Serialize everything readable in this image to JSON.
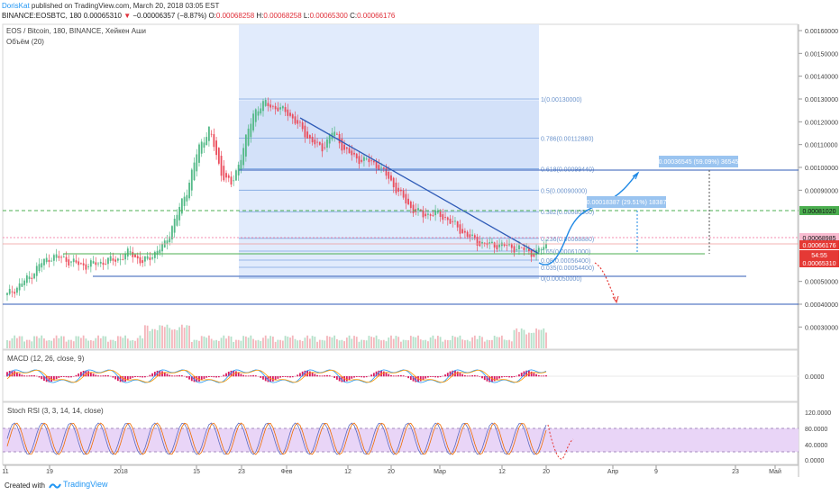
{
  "header": {
    "author": "DorisKat",
    "published": " published on TradingView.com, March 20, 2018 03:05 EST",
    "symbol": "BINANCE:EOSBTC, 180",
    "price": "0.00065310",
    "arrow": "▼",
    "change": "−0.00006357 (−8.87%)",
    "o_label": " O:",
    "o": "0.00068258",
    "h_label": " H:",
    "h": "0.00068258",
    "l_label": " L:",
    "l": "0.00065300",
    "c_label": " C:",
    "c": "0.00066176"
  },
  "legend": {
    "title": "EOS / Bitcoin, 180, BINANCE, Хейкен Аши",
    "volume": "Объём (20)"
  },
  "panes": {
    "macd_label": "MACD (12, 26, close, 9)",
    "rsi_label": "Stoch RSI (3, 3, 14, 14, close)"
  },
  "footer": {
    "created": "Created with",
    "brand": "TradingView"
  },
  "colors": {
    "up": "#53b987",
    "down": "#eb4d5c",
    "accent": "#2196f3",
    "fib_fill": "#dce8fb",
    "green_line": "#4caf50"
  },
  "chart_data": {
    "type": "candlestick",
    "y_axis": {
      "min": 0.0003,
      "max": 0.0017,
      "ticks": [
        "0.00160000",
        "0.00150000",
        "0.00140000",
        "0.00130000",
        "0.00120000",
        "0.00110000",
        "0.00100000",
        "0.00090000",
        "0.00081020",
        "0.00068985",
        "0.00066176",
        "0.00065310",
        "0.00050000",
        "0.00040000",
        "0.00030000"
      ]
    },
    "price_boxes": [
      {
        "label": "0.00081020",
        "kind": "green"
      },
      {
        "label": "0.00068985",
        "kind": "pink"
      },
      {
        "label": "0.00066176",
        "kind": "red"
      },
      {
        "label": "54:55",
        "kind": "red"
      },
      {
        "label": "0.00065310",
        "kind": "red"
      }
    ],
    "x_ticks": [
      "11",
      "19",
      "2018",
      "15",
      "23",
      "Фев",
      "12",
      "20",
      "Мар",
      "12",
      "20",
      "Апр",
      "9",
      "23",
      "Май"
    ],
    "fib_levels": [
      {
        "ratio": "1",
        "value": "0.00130000",
        "label": "1(0.00130000)"
      },
      {
        "ratio": "0.786",
        "value": "0.00112880",
        "label": "0.786(0.00112880)"
      },
      {
        "ratio": "0.618",
        "value": "0.00099440",
        "label": "0.618(0.00099440)"
      },
      {
        "ratio": "0.5",
        "value": "0.00090000",
        "label": "0.5(0.00090000)"
      },
      {
        "ratio": "0.382",
        "value": "0.00080560",
        "label": "0.382(0.00080560)"
      },
      {
        "ratio": "0.236",
        "value": "0.00068880",
        "label": "0.236(0.00068880)"
      },
      {
        "ratio": "0.65",
        "value": "0.00061000",
        "label": "0.65(0.00061000)"
      },
      {
        "ratio": "0.08",
        "value": "0.00056400",
        "label": "0.08(0.00056400)"
      },
      {
        "ratio": "0.035",
        "value": "0.00054400",
        "label": "0.035(0.00054400)"
      },
      {
        "ratio": "0",
        "value": "0.00050000",
        "label": "0(0.00050000)"
      }
    ],
    "annotations": [
      {
        "label": "0.00036545 (59.09%) 36545"
      },
      {
        "label": "0.00018387 (29.51%) 18387"
      }
    ],
    "series_close": [
      0.00044,
      0.00048,
      0.00052,
      0.00058,
      0.00061,
      0.0006,
      0.00058,
      0.00057,
      0.00058,
      0.00059,
      0.0006,
      0.00063,
      0.00058,
      0.00062,
      0.00066,
      0.00078,
      0.0009,
      0.00108,
      0.00117,
      0.00098,
      0.00092,
      0.00108,
      0.00125,
      0.00128,
      0.00126,
      0.00124,
      0.00118,
      0.00112,
      0.00108,
      0.00116,
      0.00108,
      0.00104,
      0.00103,
      0.00101,
      0.00095,
      0.00088,
      0.00082,
      0.00079,
      0.0008,
      0.00078,
      0.00074,
      0.0007,
      0.00067,
      0.00066,
      0.00066,
      0.00065,
      0.00064,
      0.00062,
      0.00066
    ]
  }
}
